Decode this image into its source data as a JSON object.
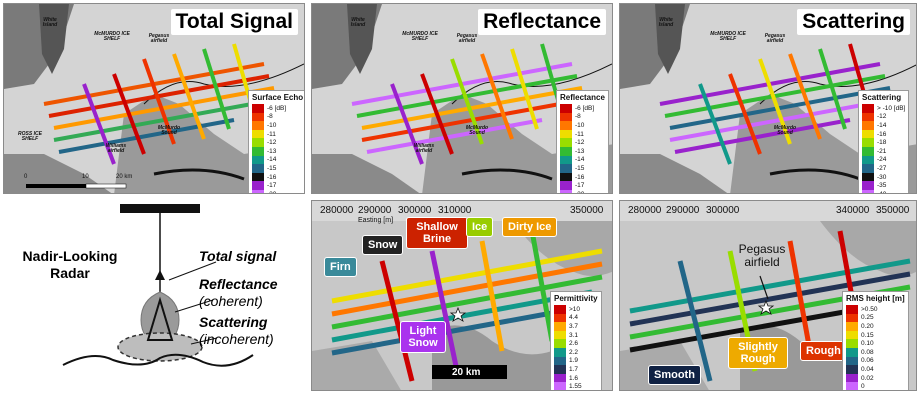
{
  "panels": {
    "total": {
      "title": "Total Signal",
      "legend_title": "Surface Echo",
      "legend_labels": [
        "-6 [dB]",
        "-8",
        "-10",
        "-11",
        "-12",
        "-13",
        "-14",
        "-15",
        "-16",
        "-17",
        "-20"
      ],
      "scale_labels": [
        "0",
        "10",
        "20 km"
      ]
    },
    "reflectance": {
      "title": "Reflectance",
      "legend_title": "Reflectance",
      "legend_labels": [
        "-6 [dB]",
        "-8",
        "-10",
        "-11",
        "-12",
        "-13",
        "-14",
        "-15",
        "-16",
        "-17",
        "-20"
      ]
    },
    "scattering": {
      "title": "Scattering",
      "legend_title": "Scattering",
      "legend_labels": [
        "> -10 [dB]",
        "-12",
        "-14",
        "-16",
        "-18",
        "-21",
        "-24",
        "-27",
        "-30",
        "-35",
        "-40"
      ]
    },
    "permittivity": {
      "legend_title": "Permittivity",
      "legend_labels": [
        ">10",
        "4.4",
        "3.7",
        "3.1",
        "2.6",
        "2.2",
        "1.9",
        "1.7",
        "1.6",
        "1.55"
      ],
      "easting_labels": [
        "280000",
        "290000",
        "300000",
        "310000",
        "320000",
        "330000",
        "340000",
        "350000"
      ],
      "easting_axis": "Easting [m]",
      "scale_label": "20 km",
      "callouts": {
        "firn": "Firn",
        "snow": "Snow",
        "shallow_brine": "Shallow Brine",
        "ice": "Ice",
        "dirty_ice": "Dirty Ice",
        "light_snow": "Light Snow"
      }
    },
    "roughness": {
      "legend_title": "RMS height [m]",
      "legend_labels": [
        ">0.50",
        "0.25",
        "0.20",
        "0.15",
        "0.10",
        "0.08",
        "0.06",
        "0.04",
        "0.02",
        "0"
      ],
      "easting_labels": [
        "280000",
        "290000",
        "300000",
        "310000",
        "320000",
        "330000",
        "340000",
        "350000"
      ],
      "airfield_label": "Pegasus airfield",
      "callouts": {
        "smooth": "Smooth",
        "slightly_rough": "Slightly Rough",
        "rough": "Rough"
      }
    }
  },
  "map_labels": {
    "white_island": "White Island",
    "mcmurdo_ice_shelf": "McMURDO ICE SHELF",
    "pegasus_small": "Pegasus airfield",
    "ross_ice_shelf": "ROSS ICE SHELF",
    "mcmurdo_sound": "McMurdo Sound",
    "williams_field": "Williams airfield"
  },
  "diagram": {
    "title": "Nadir-Looking Radar",
    "total_signal": "Total signal",
    "reflectance": "Reflectance",
    "reflectance_sub": "(coherent)",
    "scattering": "Scattering",
    "scattering_sub": "(incoherent)"
  },
  "colors": {
    "scale": [
      "#cc0000",
      "#ee3300",
      "#ff7700",
      "#ffaa00",
      "#eedd00",
      "#99dd00",
      "#33bb33",
      "#11998a",
      "#226688",
      "#223355",
      "#111111",
      "#9922cc",
      "#cc66ff"
    ]
  }
}
